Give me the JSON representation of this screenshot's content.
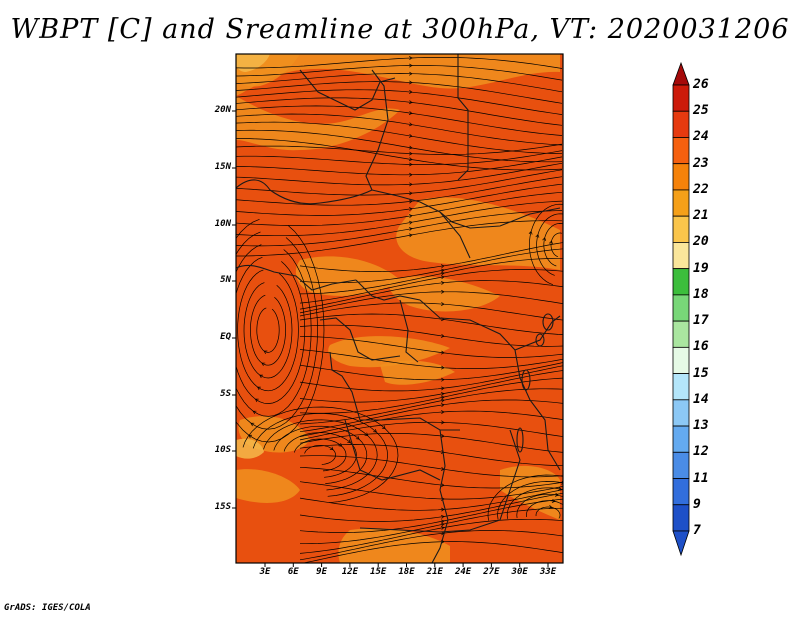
{
  "title": "WBPT [C] and Sreamline at 300hPa, VT: 2020031206",
  "credit": "GrADS: IGES/COLA",
  "map": {
    "lat_labels": [
      "20N",
      "15N",
      "10N",
      "5N",
      "EQ",
      "5S",
      "10S",
      "15S"
    ],
    "lon_labels": [
      "3E",
      "6E",
      "9E",
      "12E",
      "15E",
      "18E",
      "21E",
      "24E",
      "27E",
      "30E",
      "33E"
    ],
    "fill_color": "#e8500f",
    "warm_color": "#f0901e",
    "streamline_color": "#000000",
    "border_color": "#1a1a1a"
  },
  "colorbar": {
    "levels": [
      "26",
      "25",
      "24",
      "23",
      "22",
      "21",
      "20",
      "19",
      "18",
      "17",
      "16",
      "15",
      "14",
      "13",
      "12",
      "11",
      "9",
      "7"
    ],
    "colors": [
      "#a50a0a",
      "#cc1a0a",
      "#e63a0f",
      "#f5600f",
      "#f5820a",
      "#f5a019",
      "#fac54b",
      "#fae69b",
      "#3cbe3c",
      "#78d778",
      "#aae6a0",
      "#e6fae6",
      "#b4e6fa",
      "#8cc8f5",
      "#64aaf0",
      "#4a8ce6",
      "#326edc",
      "#1e50c8"
    ]
  }
}
